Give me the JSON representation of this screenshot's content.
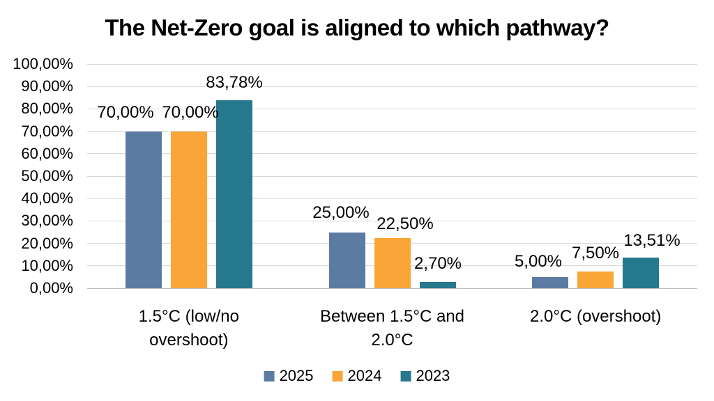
{
  "title": "The Net-Zero goal is aligned to which pathway?",
  "chart_data": {
    "type": "bar",
    "title": "The Net-Zero goal is aligned to which pathway?",
    "categories": [
      "1.5°C (low/no overshoot)",
      "Between 1.5°C and 2.0°C",
      "2.0°C (overshoot)"
    ],
    "category_lines": [
      [
        "1.5°C (low/no",
        "overshoot)"
      ],
      [
        "Between 1.5°C and",
        "2.0°C"
      ],
      [
        "2.0°C (overshoot)"
      ]
    ],
    "series": [
      {
        "name": "2025",
        "color": "#5c7ba3",
        "values": [
          70,
          25,
          5
        ],
        "value_labels": [
          "70,00%",
          "25,00%",
          "5,00%"
        ]
      },
      {
        "name": "2024",
        "color": "#faa537",
        "values": [
          70,
          22.5,
          7.5
        ],
        "value_labels": [
          "70,00%",
          "22,50%",
          "7,50%"
        ]
      },
      {
        "name": "2023",
        "color": "#26798c",
        "values": [
          83.78,
          2.7,
          13.51
        ],
        "value_labels": [
          "83,78%",
          "2,70%",
          "13,51%"
        ]
      }
    ],
    "xlabel": "",
    "ylabel": "",
    "ylim": [
      0,
      100
    ],
    "ytick_step": 10,
    "ytick_labels": [
      "0,00%",
      "10,00%",
      "20,00%",
      "30,00%",
      "40,00%",
      "50,00%",
      "60,00%",
      "70,00%",
      "80,00%",
      "90,00%",
      "100,00%"
    ],
    "grid": true,
    "gridline_color": "#d9d9d9",
    "axis_line_color": "#bfbfbf",
    "legend_position": "bottom",
    "legend_entries": [
      "2025",
      "2024",
      "2023"
    ]
  }
}
